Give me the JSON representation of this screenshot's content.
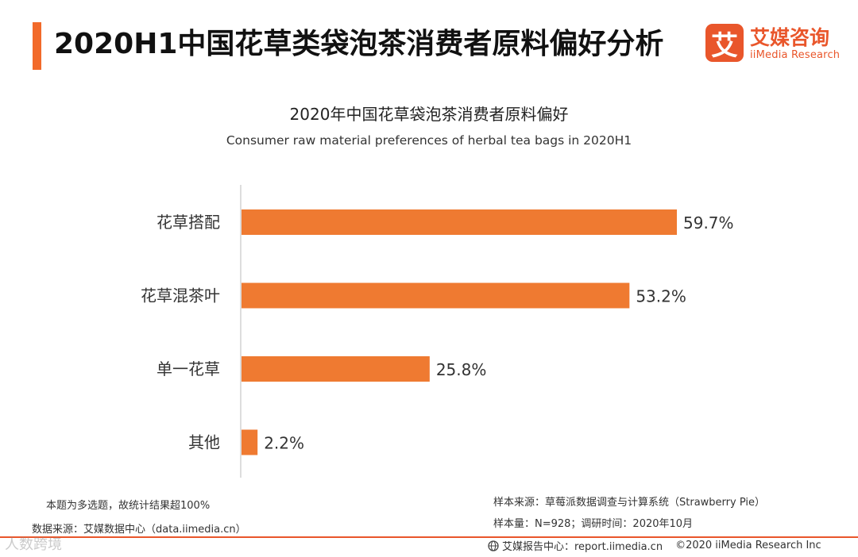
{
  "header": {
    "title": "2020H1中国花草类袋泡茶消费者原料偏好分析",
    "logo_mark": "艾",
    "logo_cn": "艾媒咨询",
    "logo_en": "iiMedia Research"
  },
  "chart_data": {
    "type": "bar",
    "orientation": "horizontal",
    "title": "2020年中国花草袋泡茶消费者原料偏好",
    "subtitle": "Consumer raw material preferences of  herbal tea bags in 2020H1",
    "categories": [
      "花草搭配",
      "花草混茶叶",
      "单一花草",
      "其他"
    ],
    "values": [
      59.7,
      53.2,
      25.8,
      2.2
    ],
    "value_labels": [
      "59.7%",
      "53.2%",
      "25.8%",
      "2.2%"
    ],
    "unit": "%",
    "xlim": [
      0,
      65
    ],
    "grid": false,
    "bar_color": "#ef7a31"
  },
  "notes": {
    "multi_select": "本题为多选题，故统计结果超100%",
    "data_source": "数据来源：艾媒数据中心（data.iimedia.cn）",
    "sample_source": "样本来源：草莓派数据调查与计算系统（Strawberry Pie）",
    "sample_size": "样本量：N=928；调研时间：2020年10月"
  },
  "footer": {
    "report_center": "艾媒报告中心：report.iimedia.cn",
    "copyright": "©2020  iiMedia Research  Inc",
    "globe_icon": "globe-icon"
  },
  "watermark": "人数跨境"
}
